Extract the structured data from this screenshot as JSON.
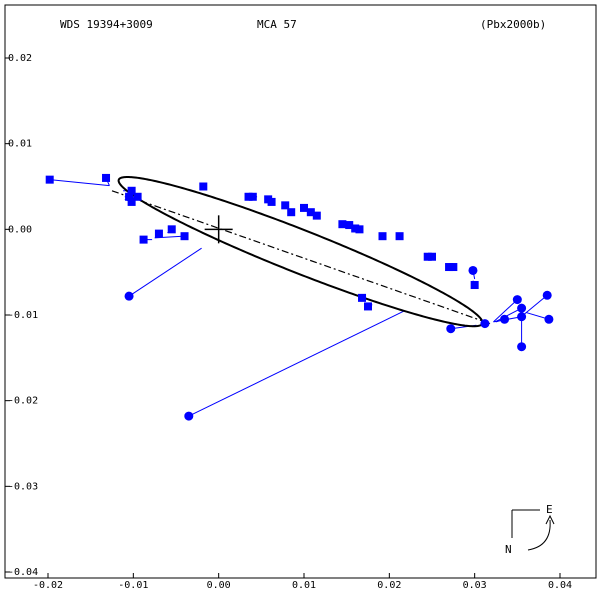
{
  "header": {
    "wds_id": "WDS 19394+3009",
    "discoverer": "MCA  57",
    "reference": "(Pbx2000b)"
  },
  "compass": {
    "east_label": "E",
    "north_label": "N"
  },
  "colors": {
    "points": "#0000ff",
    "residual_lines": "#0000ff",
    "orbit": "#000000",
    "axes": "#000000"
  },
  "chart_data": {
    "type": "scatter",
    "title": "",
    "xlabel": "",
    "ylabel": "",
    "xlim": [
      -0.02,
      0.04
    ],
    "ylim": [
      -0.04,
      0.02
    ],
    "x_ticks": [
      -0.02,
      -0.01,
      0.0,
      0.01,
      0.02,
      0.03,
      0.04
    ],
    "y_ticks": [
      0.02,
      0.01,
      0.0,
      -0.01,
      -0.02,
      -0.03,
      -0.04
    ],
    "x_tick_labels": [
      "-0.02",
      "-0.01",
      "0.00",
      "0.01",
      "0.02",
      "0.03",
      "0.04"
    ],
    "y_tick_labels": [
      "0.02",
      "0.01",
      "0.00",
      "-0.01",
      "-0.02",
      "-0.03",
      "-0.04"
    ],
    "grid": false,
    "primary_star": [
      0.0,
      0.0
    ],
    "orbit": {
      "center": [
        0.0096,
        -0.0026
      ],
      "semi_major": 0.0229,
      "semi_minor": 0.0025,
      "angle_deg": -21.5
    },
    "line_of_nodes": [
      [
        -0.0125,
        0.0045
      ],
      [
        0.0318,
        -0.011
      ]
    ],
    "series": [
      {
        "marker": "square",
        "points": [
          [
            -0.0198,
            0.0058,
            -0.0128,
            0.0051
          ],
          [
            -0.0132,
            0.006,
            -0.0128,
            0.0051
          ],
          [
            -0.0102,
            0.0045,
            -0.0112,
            0.0045
          ],
          [
            -0.0105,
            0.0038,
            -0.011,
            0.0038
          ],
          [
            -0.0095,
            0.0038,
            -0.0102,
            0.0037
          ],
          [
            -0.0102,
            0.0032,
            -0.011,
            0.0035
          ],
          [
            -0.0018,
            0.005,
            -0.002,
            0.005
          ],
          [
            0.0035,
            0.0038,
            0.004,
            0.004
          ],
          [
            0.004,
            0.0038,
            0.0045,
            0.0038
          ],
          [
            0.0058,
            0.0035,
            0.006,
            0.0034
          ],
          [
            0.0062,
            0.0032,
            0.0065,
            0.0032
          ],
          [
            0.0078,
            0.0028,
            0.008,
            0.0027
          ],
          [
            0.0085,
            0.002,
            0.0088,
            0.0021
          ],
          [
            0.01,
            0.0025,
            0.0102,
            0.0024
          ],
          [
            0.0108,
            0.002,
            0.011,
            0.002
          ],
          [
            0.0115,
            0.0016,
            0.0116,
            0.0017
          ],
          [
            0.0145,
            0.0006,
            0.0146,
            0.0006
          ],
          [
            0.0153,
            0.0005,
            0.0154,
            0.0004
          ],
          [
            0.016,
            0.0001,
            0.0162,
            0.0
          ],
          [
            0.0165,
            0.0,
            0.0167,
            0.0
          ],
          [
            0.0192,
            -0.0008,
            0.0192,
            -0.0008
          ],
          [
            0.0212,
            -0.0008,
            0.0208,
            -0.001
          ],
          [
            0.0245,
            -0.0032,
            0.0242,
            -0.003
          ],
          [
            0.025,
            -0.0032,
            0.0252,
            -0.0034
          ],
          [
            0.027,
            -0.0044,
            0.0268,
            -0.0042
          ],
          [
            0.0275,
            -0.0044,
            0.0277,
            -0.0046
          ],
          [
            0.03,
            -0.0065,
            0.0298,
            -0.006
          ],
          [
            -0.0088,
            -0.0012,
            -0.0078,
            -0.0012
          ],
          [
            -0.007,
            -0.0005,
            -0.0068,
            -0.0005
          ],
          [
            -0.0055,
            0.0,
            -0.006,
            -0.0004
          ],
          [
            -0.004,
            -0.0008,
            -0.0075,
            -0.001
          ],
          [
            0.0168,
            -0.008,
            0.017,
            -0.0082
          ],
          [
            0.0175,
            -0.009,
            0.018,
            -0.0088
          ]
        ]
      },
      {
        "marker": "circle",
        "points": [
          [
            -0.0105,
            -0.0078,
            -0.002,
            -0.0022
          ],
          [
            -0.0035,
            -0.0218,
            0.0218,
            -0.0095
          ],
          [
            0.0298,
            -0.0048,
            0.03,
            -0.0058
          ],
          [
            0.0272,
            -0.0116,
            0.0302,
            -0.0112
          ],
          [
            0.0312,
            -0.011,
            0.0312,
            -0.011
          ],
          [
            0.0335,
            -0.0105,
            0.0325,
            -0.0108
          ],
          [
            0.035,
            -0.0082,
            0.0322,
            -0.0108
          ],
          [
            0.0355,
            -0.0092,
            0.0324,
            -0.0108
          ],
          [
            0.0355,
            -0.0102,
            0.0322,
            -0.0108
          ],
          [
            0.0355,
            -0.0137,
            0.0355,
            -0.0102
          ],
          [
            0.0385,
            -0.0077,
            0.0357,
            -0.01
          ],
          [
            0.0387,
            -0.0105,
            0.036,
            -0.0097
          ]
        ]
      }
    ]
  }
}
